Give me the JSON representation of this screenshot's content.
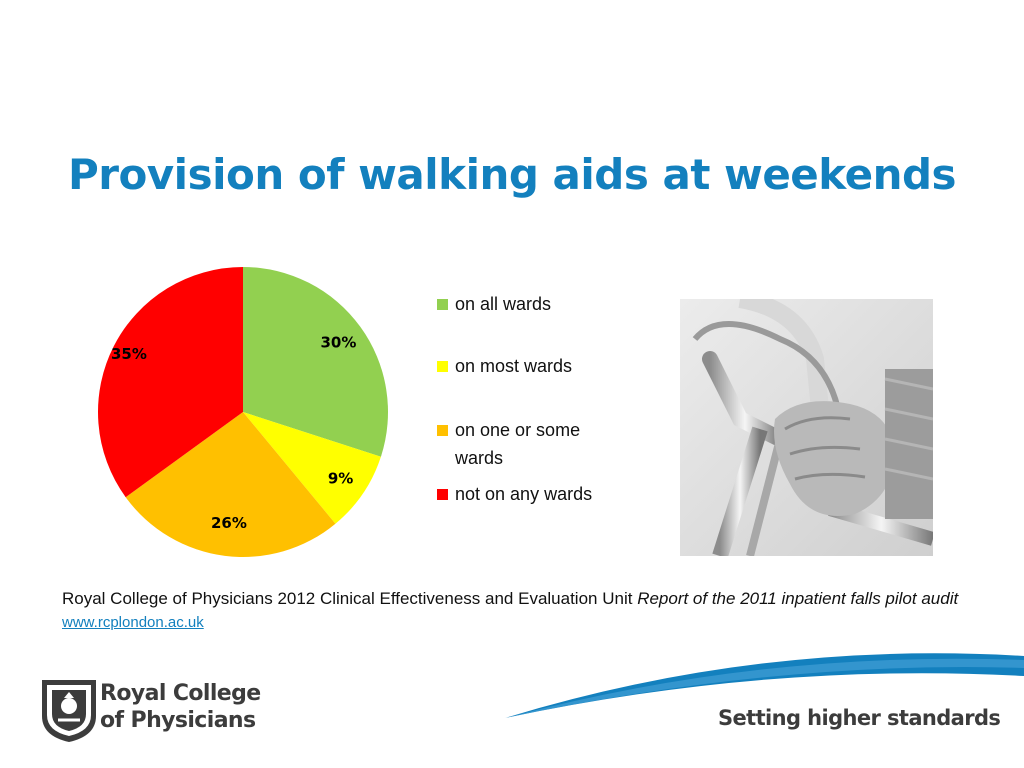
{
  "title": "Provision of walking aids at weekends",
  "chart_data": {
    "type": "pie",
    "title": "Provision of walking aids at weekends",
    "categories": [
      "on all wards",
      "on most wards",
      "on one or some wards",
      "not on any wards"
    ],
    "values": [
      30,
      9,
      26,
      35
    ],
    "labels": [
      "30%",
      "9%",
      "26%",
      "35%"
    ],
    "colors": [
      "#92d050",
      "#ffff00",
      "#ffc000",
      "#ff0000"
    ],
    "legend_position": "right",
    "start_angle": "12 o'clock, clockwise"
  },
  "legend": [
    {
      "label": "on all wards",
      "color": "#92d050"
    },
    {
      "label": "on most wards",
      "color": "#ffff00"
    },
    {
      "label": "on one or some wards",
      "color": "#ffc000"
    },
    {
      "label": "not on any wards",
      "color": "#ff0000"
    }
  ],
  "citation": {
    "text": "Royal College of Physicians 2012 Clinical Effectiveness and Evaluation Unit",
    "italic": "Report of the 2011 inpatient falls pilot audit",
    "link": "www.rcplondon.ac.uk"
  },
  "logo": {
    "line1": "Royal College",
    "line2": "of Physicians"
  },
  "tagline": "Setting higher standards",
  "photo": {
    "icon": "walking-frame-hands-photo"
  },
  "colors": {
    "title": "#1380be",
    "accent_blue": "#1380be",
    "text": "#3c3c3c"
  }
}
